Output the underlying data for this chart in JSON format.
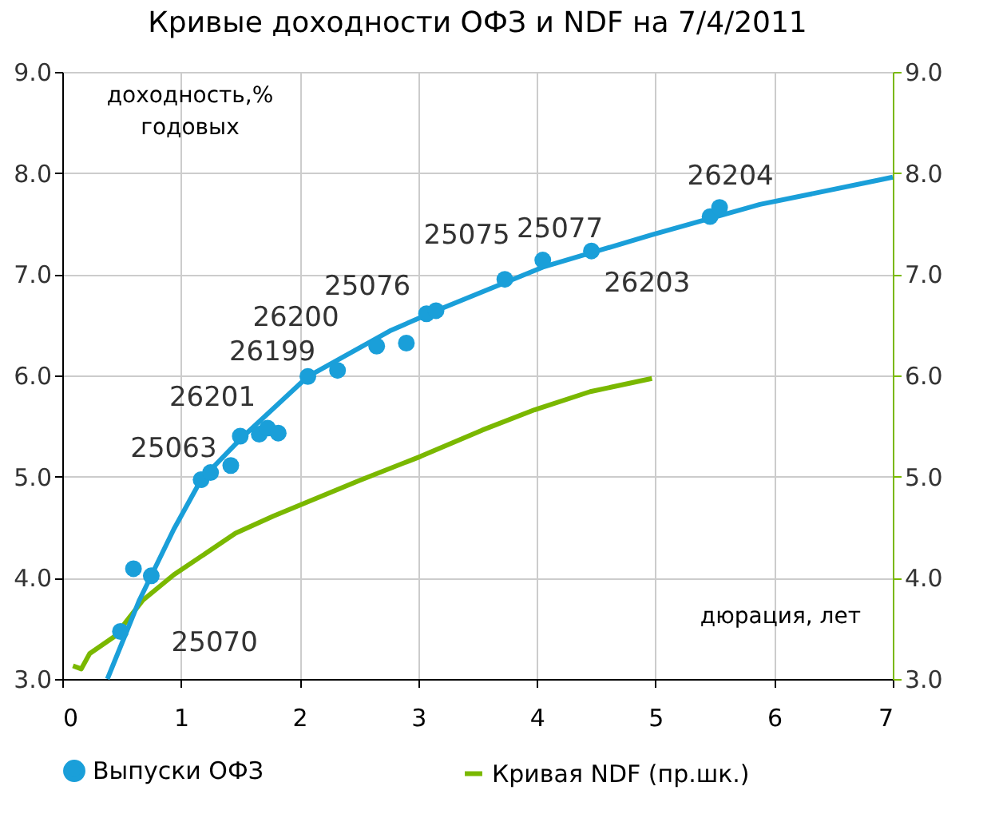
{
  "chart_data": {
    "type": "scatter",
    "title": "Кривые доходности ОФЗ и NDF на 7/4/2011",
    "ylabel": "доходность,% годовых",
    "xlabel": "дюрация, лет",
    "xlim": [
      0,
      7
    ],
    "xticks": [
      0,
      1,
      2,
      3,
      4,
      5,
      6,
      7
    ],
    "ylim": [
      3,
      9
    ],
    "yticks": [
      {
        "value": 3,
        "label": "3.0"
      },
      {
        "value": 4,
        "label": "4.0"
      },
      {
        "value": 5,
        "label": "5.0"
      },
      {
        "value": 6,
        "label": "6.0"
      },
      {
        "value": 7,
        "label": "7.0"
      },
      {
        "value": 8,
        "label": "8.0"
      },
      {
        "value": 9,
        "label": "9.0"
      }
    ],
    "y2lim": [
      3,
      9
    ],
    "y2ticks": [
      {
        "value": 3,
        "label": "3.0"
      },
      {
        "value": 4,
        "label": "4.0"
      },
      {
        "value": 5,
        "label": "5.0"
      },
      {
        "value": 6,
        "label": "6.0"
      },
      {
        "value": 7,
        "label": "7.0"
      },
      {
        "value": 8,
        "label": "8.0"
      },
      {
        "value": 9,
        "label": "9.0"
      }
    ],
    "grid": true,
    "legend": "bottom",
    "series": [
      {
        "name": "Выпуски ОФЗ",
        "type": "scatter",
        "color": "#1a9fd9",
        "x": [
          0.49,
          0.6,
          0.75,
          1.17,
          1.25,
          1.42,
          1.5,
          1.66,
          1.73,
          1.82,
          2.07,
          2.32,
          2.65,
          2.9,
          3.07,
          3.15,
          3.73,
          4.05,
          4.46,
          5.46,
          5.54
        ],
        "values": [
          3.47,
          4.09,
          4.02,
          4.97,
          5.04,
          5.11,
          5.4,
          5.42,
          5.48,
          5.43,
          5.99,
          6.05,
          6.29,
          6.32,
          6.61,
          6.64,
          6.95,
          7.14,
          7.23,
          7.57,
          7.66
        ]
      },
      {
        "type": "line",
        "color": "#1a9fd9",
        "x": [
          0.38,
          0.65,
          0.94,
          1.17,
          1.5,
          2.07,
          2.76,
          3.15,
          4.05,
          4.97,
          5.88,
          6.92,
          7
        ],
        "values": [
          3.0,
          3.78,
          4.48,
          4.97,
          5.37,
          5.99,
          6.44,
          6.64,
          7.07,
          7.39,
          7.69,
          7.94,
          7.96
        ]
      },
      {
        "name": "Кривая NDF (пр.шк.)",
        "type": "line",
        "axis": "y2",
        "color": "#7ab800",
        "x": [
          0.09,
          0.16,
          0.23,
          0.44,
          0.68,
          0.94,
          1.46,
          1.78,
          2.5,
          3.02,
          3.54,
          3.98,
          4.45,
          4.97
        ],
        "values": [
          3.13,
          3.1,
          3.25,
          3.42,
          3.78,
          4.03,
          4.44,
          4.61,
          4.96,
          5.2,
          5.46,
          5.66,
          5.84,
          5.97
        ]
      }
    ],
    "annotations": [
      {
        "text": "25070",
        "x": 0.49,
        "y": 3.47
      },
      {
        "text": "25063",
        "x": 1.42,
        "y": 5.11
      },
      {
        "text": "26201",
        "x": 1.5,
        "y": 5.4
      },
      {
        "text": "26199",
        "x": 2.07,
        "y": 5.99
      },
      {
        "text": "26200",
        "x": 2.32,
        "y": 6.05
      },
      {
        "text": "25076",
        "x": 2.65,
        "y": 6.29
      },
      {
        "text": "25075",
        "x": 3.15,
        "y": 6.64
      },
      {
        "text": "25077",
        "x": 4.05,
        "y": 7.14
      },
      {
        "text": "26203",
        "x": 4.46,
        "y": 7.23
      },
      {
        "text": "26204",
        "x": 5.54,
        "y": 7.66
      }
    ]
  }
}
